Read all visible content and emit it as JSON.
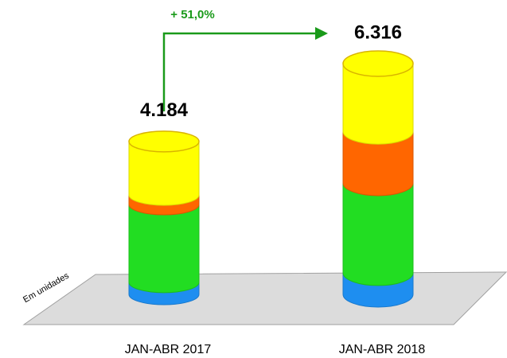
{
  "chart_data": {
    "type": "stacked-cylinder",
    "annotation": "+ 51,0%",
    "axis_label": "Em unidades",
    "categories": [
      "JAN-ABR 2017",
      "JAN-ABR 2018"
    ],
    "series": [
      {
        "color": "#1e8ef0",
        "values": [
          330,
          590
        ]
      },
      {
        "color": "#22dd22",
        "values": [
          2130,
          2460
        ]
      },
      {
        "color": "#ff6600",
        "values": [
          260,
          1410
        ]
      },
      {
        "color": "#ffff00",
        "values": [
          1464,
          1856
        ]
      }
    ],
    "totals": {
      "values": [
        4184,
        6316
      ],
      "value_labels": [
        "4.184",
        "6.316"
      ]
    }
  }
}
